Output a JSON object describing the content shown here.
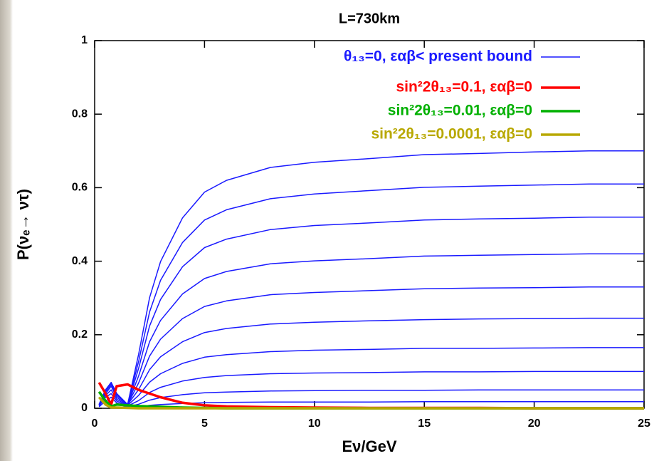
{
  "chart_data": {
    "type": "line",
    "title": "L=730km",
    "xlabel": "Eν/GeV",
    "ylabel": "P(νₑ→ ντ)",
    "x": [
      0.2,
      0.5,
      0.75,
      1,
      1.5,
      2,
      2.5,
      3,
      4,
      5,
      6,
      8,
      10,
      12.5,
      15,
      17.5,
      20,
      22.5,
      25
    ],
    "xlim": [
      0,
      25
    ],
    "xticks": [
      0,
      5,
      10,
      15,
      20,
      25
    ],
    "ylim": [
      0,
      1
    ],
    "yticks": [
      0,
      0.2,
      0.4,
      0.6,
      0.8,
      1
    ],
    "legend": "upper right",
    "series": [
      {
        "name": "θ₁₃=0, εαβ< present bound",
        "color": "#1a1aff",
        "curves": [
          [
            0.01,
            0.05,
            0.07,
            0.04,
            0.01,
            0.147,
            0.301,
            0.399,
            0.518,
            0.588,
            0.62,
            0.655,
            0.669,
            0.679,
            0.69,
            0.693,
            0.697,
            0.7,
            0.7
          ],
          [
            0.01,
            0.05,
            0.07,
            0.04,
            0.01,
            0.128,
            0.262,
            0.348,
            0.451,
            0.512,
            0.54,
            0.57,
            0.583,
            0.592,
            0.601,
            0.604,
            0.607,
            0.61,
            0.61
          ],
          [
            0.01,
            0.05,
            0.07,
            0.04,
            0.01,
            0.109,
            0.224,
            0.296,
            0.385,
            0.437,
            0.46,
            0.486,
            0.497,
            0.504,
            0.512,
            0.515,
            0.517,
            0.52,
            0.52
          ],
          [
            0.01,
            0.05,
            0.07,
            0.04,
            0.01,
            0.088,
            0.181,
            0.239,
            0.311,
            0.353,
            0.372,
            0.393,
            0.401,
            0.407,
            0.414,
            0.416,
            0.418,
            0.42,
            0.42
          ],
          [
            0.01,
            0.05,
            0.07,
            0.04,
            0.01,
            0.069,
            0.142,
            0.188,
            0.244,
            0.277,
            0.292,
            0.309,
            0.315,
            0.32,
            0.325,
            0.327,
            0.328,
            0.33,
            0.33
          ],
          [
            0.01,
            0.045,
            0.065,
            0.035,
            0.01,
            0.051,
            0.105,
            0.14,
            0.181,
            0.206,
            0.217,
            0.229,
            0.234,
            0.238,
            0.241,
            0.243,
            0.244,
            0.245,
            0.245
          ],
          [
            0.01,
            0.04,
            0.06,
            0.03,
            0.008,
            0.035,
            0.071,
            0.094,
            0.122,
            0.139,
            0.146,
            0.154,
            0.158,
            0.16,
            0.163,
            0.163,
            0.164,
            0.165,
            0.165
          ],
          [
            0.008,
            0.035,
            0.05,
            0.025,
            0.006,
            0.021,
            0.043,
            0.057,
            0.074,
            0.084,
            0.089,
            0.094,
            0.096,
            0.097,
            0.099,
            0.099,
            0.1,
            0.1,
            0.1
          ],
          [
            0.006,
            0.03,
            0.04,
            0.02,
            0.004,
            0.011,
            0.022,
            0.029,
            0.037,
            0.042,
            0.044,
            0.047,
            0.048,
            0.049,
            0.049,
            0.05,
            0.05,
            0.05,
            0.05
          ],
          [
            0.004,
            0.02,
            0.03,
            0.015,
            0.002,
            0.004,
            0.008,
            0.01,
            0.013,
            0.015,
            0.016,
            0.017,
            0.017,
            0.017,
            0.018,
            0.018,
            0.018,
            0.018,
            0.018
          ]
        ]
      },
      {
        "name": "sin²2θ₁₃=0.1, εαβ=0",
        "color": "#ff0000",
        "values": [
          0.07,
          0.04,
          0.01,
          0.06,
          0.065,
          0.05,
          0.04,
          0.03,
          0.015,
          0.008,
          0.005,
          0.003,
          0.002,
          0.001,
          0.001,
          0.001,
          0,
          0,
          0
        ]
      },
      {
        "name": "sin²2θ₁₃=0.01, εαβ=0",
        "color": "#00b000",
        "values": [
          0.045,
          0.02,
          0.005,
          0.01,
          0.008,
          0.006,
          0.005,
          0.004,
          0.002,
          0.001,
          0,
          0,
          0,
          0,
          0,
          0,
          0,
          0,
          0
        ]
      },
      {
        "name": "sin²2θ₁₃=0.0001, εαβ=0",
        "color": "#b8a800",
        "values": [
          0.03,
          0.01,
          0.002,
          0.002,
          0.001,
          0,
          0,
          0,
          0,
          0,
          0,
          0,
          0,
          0,
          0,
          0,
          0,
          0,
          0
        ]
      }
    ]
  }
}
